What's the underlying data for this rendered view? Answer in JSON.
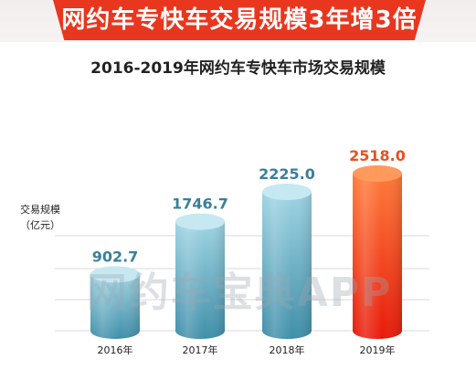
{
  "banner": {
    "title": "网约车专快车交易规模3年增3倍"
  },
  "chart_data": {
    "type": "bar",
    "title": "2016-2019年网约车专快车市场交易规模",
    "ylabel_line1": "交易规模",
    "ylabel_line2": "（亿元）",
    "categories": [
      "2016年",
      "2017年",
      "2018年",
      "2019年"
    ],
    "values": [
      902.7,
      1746.7,
      2225.0,
      2518.0
    ],
    "value_labels": [
      "902.7",
      "1746.7",
      "2225.0",
      "2518.0"
    ],
    "highlight_index": 3,
    "colors": {
      "normal_top": "#9fd5e3",
      "normal_bottom": "#3f8ea9",
      "normal_label": "#3b7f9a",
      "highlight_top": "#ff7a3a",
      "highlight_bottom": "#e81a0a",
      "highlight_label": "#e8511e",
      "grid": "#d9d9d9"
    },
    "grid": true,
    "watermark": "网约车宝典APP"
  }
}
